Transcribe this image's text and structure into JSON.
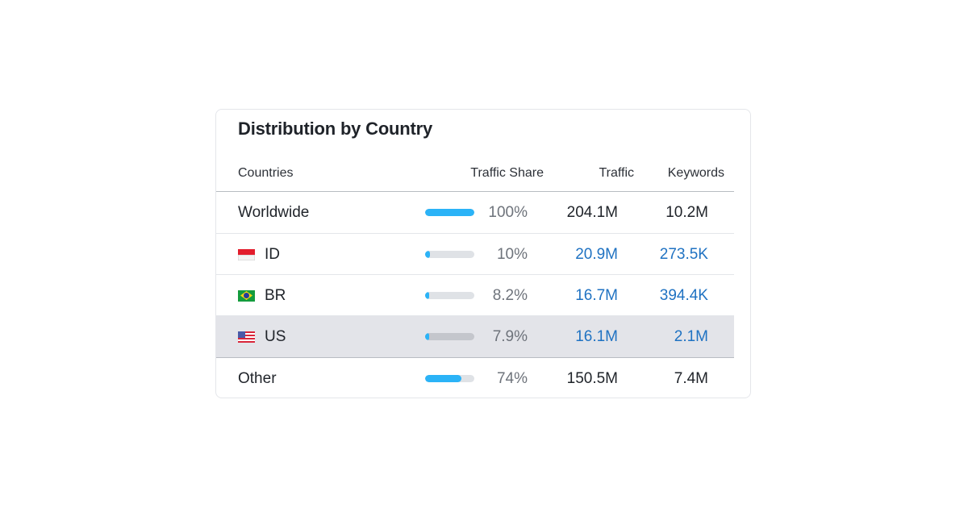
{
  "title": "Distribution by Country",
  "columns": {
    "countries": "Countries",
    "traffic_share": "Traffic Share",
    "traffic": "Traffic",
    "keywords": "Keywords"
  },
  "rows": [
    {
      "country": "Worldwide",
      "flag": null,
      "share": "100%",
      "share_value": 100,
      "traffic": "204.1M",
      "keywords": "10.2M",
      "linked": false,
      "selected": false
    },
    {
      "country": "ID",
      "flag": "indonesia-flag-icon",
      "share": "10%",
      "share_value": 10,
      "traffic": "20.9M",
      "keywords": "273.5K",
      "linked": true,
      "selected": false
    },
    {
      "country": "BR",
      "flag": "brazil-flag-icon",
      "share": "8.2%",
      "share_value": 8.2,
      "traffic": "16.7M",
      "keywords": "394.4K",
      "linked": true,
      "selected": false
    },
    {
      "country": "US",
      "flag": "us-flag-icon",
      "share": "7.9%",
      "share_value": 7.9,
      "traffic": "16.1M",
      "keywords": "2.1M",
      "linked": true,
      "selected": true
    },
    {
      "country": "Other",
      "flag": null,
      "share": "74%",
      "share_value": 74,
      "traffic": "150.5M",
      "keywords": "7.4M",
      "linked": false,
      "selected": false
    }
  ],
  "colors": {
    "bar_fill": "#2bb3f7",
    "bar_track": "#dfe2e6",
    "link": "#1f72c2",
    "selected_row": "#e3e4e9"
  }
}
